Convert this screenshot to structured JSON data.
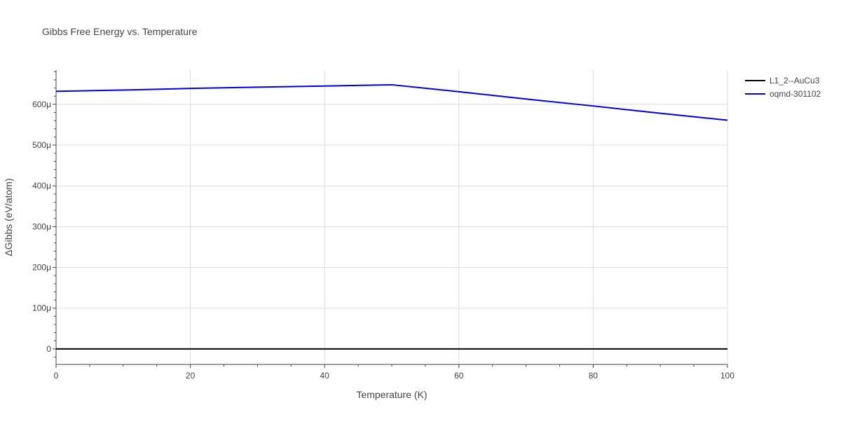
{
  "chart_data": {
    "type": "line",
    "title": "Gibbs Free Energy vs. Temperature",
    "xlabel": "Temperature (K)",
    "ylabel": "ΔGibbs (eV/atom)",
    "xlim": [
      0,
      100
    ],
    "ylim": [
      -3.8e-05,
      0.000684
    ],
    "xticks": [
      {
        "value": 0,
        "label": "0"
      },
      {
        "value": 20,
        "label": "20"
      },
      {
        "value": 40,
        "label": "40"
      },
      {
        "value": 60,
        "label": "60"
      },
      {
        "value": 80,
        "label": "80"
      },
      {
        "value": 100,
        "label": "100"
      }
    ],
    "yticks": [
      {
        "value": 0,
        "label": "0"
      },
      {
        "value": 0.0001,
        "label": "100μ"
      },
      {
        "value": 0.0002,
        "label": "200μ"
      },
      {
        "value": 0.0003,
        "label": "300μ"
      },
      {
        "value": 0.0004,
        "label": "400μ"
      },
      {
        "value": 0.0005,
        "label": "500μ"
      },
      {
        "value": 0.0006,
        "label": "600μ"
      }
    ],
    "grid": true,
    "legend_position": "top-right",
    "series": [
      {
        "name": "L1_2--AuCu3",
        "color": "#000000",
        "x": [
          0,
          10,
          20,
          30,
          40,
          50,
          60,
          70,
          80,
          90,
          100
        ],
        "y": [
          0,
          0,
          0,
          0,
          0,
          0,
          0,
          0,
          0,
          0,
          0
        ]
      },
      {
        "name": "oqmd-301102",
        "color": "#0000dd",
        "x": [
          0,
          10,
          20,
          30,
          40,
          50,
          60,
          70,
          80,
          90,
          100
        ],
        "y": [
          0.000632,
          0.000635,
          0.000639,
          0.000642,
          0.000645,
          0.000648,
          0.000631,
          0.000613,
          0.000596,
          0.000578,
          0.000561
        ]
      }
    ]
  }
}
